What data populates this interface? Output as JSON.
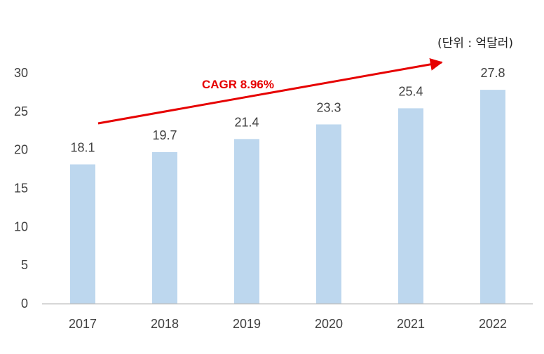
{
  "chart_data": {
    "type": "bar",
    "title": "",
    "unit_label": "(단위 : 억달러)",
    "xlabel": "",
    "ylabel": "",
    "categories": [
      "2017",
      "2018",
      "2019",
      "2020",
      "2021",
      "2022"
    ],
    "values": [
      18.1,
      19.7,
      21.4,
      23.3,
      25.4,
      27.8
    ],
    "value_labels": [
      "18.1",
      "19.7",
      "21.4",
      "23.3",
      "25.4",
      "27.8"
    ],
    "ylim": [
      0,
      30
    ],
    "yticks": [
      0,
      5,
      10,
      15,
      20,
      25,
      30
    ],
    "ytick_labels": [
      "0",
      "5",
      "10",
      "15",
      "20",
      "25",
      "30"
    ],
    "grid": false,
    "legend": "none",
    "annotation": {
      "text": "CAGR 8.96%",
      "type": "trend-arrow"
    },
    "colors": {
      "bar": "#BDD7EE",
      "annotation": "#E60000",
      "axis": "#BFBFBF",
      "text": "#404040"
    }
  }
}
